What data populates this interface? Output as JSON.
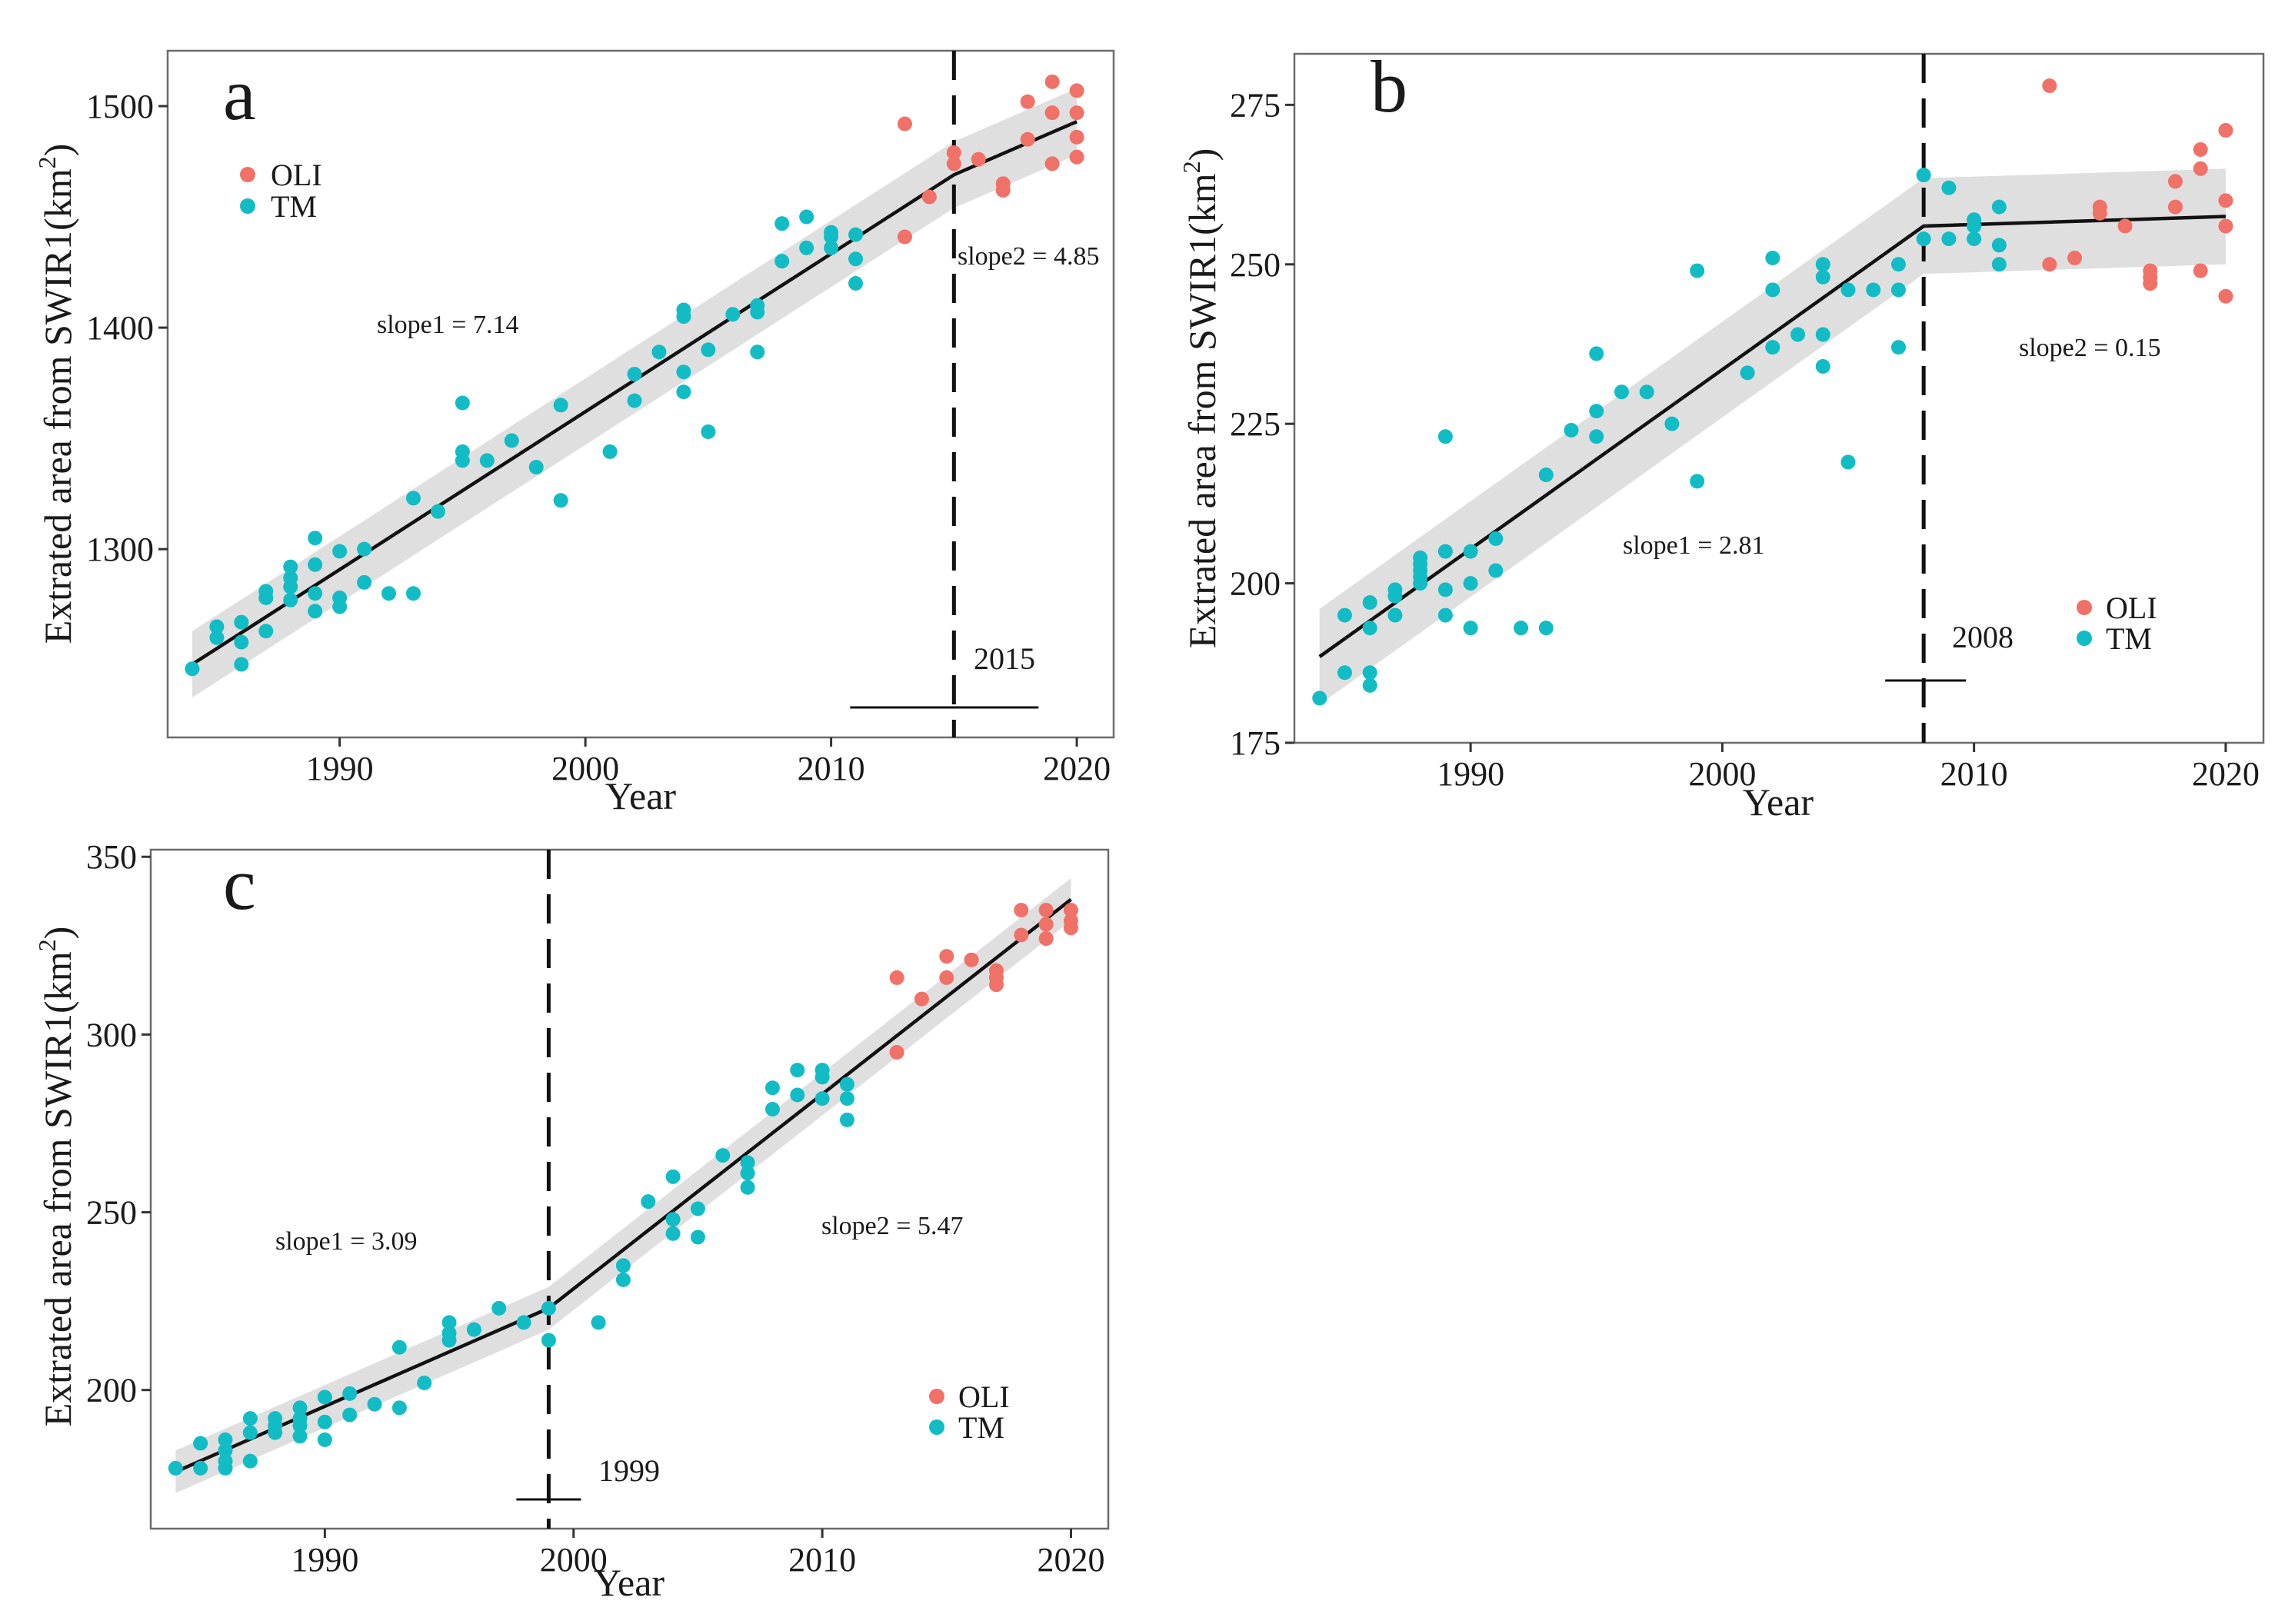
{
  "figure": {
    "legend_labels": [
      "OLI",
      "TM"
    ],
    "colors": {
      "OLI": "#F07167",
      "TM": "#12BCC5"
    }
  },
  "chart_data": [
    {
      "type": "scatter",
      "panel": "a",
      "xlabel": "Year",
      "ylabel_main": "Extrated area from SWIR1(km",
      "ylabel_sup": "2",
      "ylabel_close": ")",
      "xlim": [
        1983,
        2021.5
      ],
      "ylim": [
        1215,
        1525
      ],
      "xticks": [
        1990,
        2000,
        2010,
        2020
      ],
      "yticks": [
        1300,
        1400,
        1500
      ],
      "breakpoint_year": 2015,
      "breakpoint_label": "2015",
      "slope1_label": "slope1 = 7.14",
      "slope2_label": "slope2 = 4.85",
      "legend_position": "top-left",
      "fit": [
        [
          1984,
          1248
        ],
        [
          2015,
          1469
        ],
        [
          2020,
          1493
        ]
      ],
      "band_halfwidth": 15,
      "series": [
        {
          "name": "TM",
          "points": [
            [
              1984,
              1246
            ],
            [
              1985,
              1260
            ],
            [
              1985,
              1265
            ],
            [
              1986,
              1248
            ],
            [
              1986,
              1258
            ],
            [
              1986,
              1267
            ],
            [
              1987,
              1263
            ],
            [
              1987,
              1278
            ],
            [
              1987,
              1281
            ],
            [
              1988,
              1277
            ],
            [
              1988,
              1283
            ],
            [
              1988,
              1287
            ],
            [
              1988,
              1292
            ],
            [
              1989,
              1272
            ],
            [
              1989,
              1280
            ],
            [
              1989,
              1293
            ],
            [
              1989,
              1305
            ],
            [
              1990,
              1274
            ],
            [
              1990,
              1278
            ],
            [
              1990,
              1299
            ],
            [
              1991,
              1285
            ],
            [
              1991,
              1300
            ],
            [
              1992,
              1280
            ],
            [
              1993,
              1280
            ],
            [
              1993,
              1323
            ],
            [
              1994,
              1317
            ],
            [
              1995,
              1340
            ],
            [
              1995,
              1344
            ],
            [
              1995,
              1366
            ],
            [
              1996,
              1340
            ],
            [
              1997,
              1349
            ],
            [
              1998,
              1337
            ],
            [
              1999,
              1322
            ],
            [
              1999,
              1365
            ],
            [
              2001,
              1344
            ],
            [
              2002,
              1367
            ],
            [
              2002,
              1379
            ],
            [
              2003,
              1389
            ],
            [
              2004,
              1371
            ],
            [
              2004,
              1380
            ],
            [
              2004,
              1405
            ],
            [
              2004,
              1408
            ],
            [
              2005,
              1353
            ],
            [
              2005,
              1390
            ],
            [
              2006,
              1406
            ],
            [
              2007,
              1389
            ],
            [
              2007,
              1407
            ],
            [
              2007,
              1410
            ],
            [
              2008,
              1430
            ],
            [
              2008,
              1447
            ],
            [
              2009,
              1436
            ],
            [
              2009,
              1450
            ],
            [
              2010,
              1436
            ],
            [
              2010,
              1441
            ],
            [
              2010,
              1443
            ],
            [
              2011,
              1420
            ],
            [
              2011,
              1431
            ],
            [
              2011,
              1442
            ]
          ]
        },
        {
          "name": "OLI",
          "points": [
            [
              2013,
              1441
            ],
            [
              2013,
              1492
            ],
            [
              2014,
              1459
            ],
            [
              2015,
              1474
            ],
            [
              2015,
              1479
            ],
            [
              2016,
              1476
            ],
            [
              2017,
              1462
            ],
            [
              2017,
              1465
            ],
            [
              2018,
              1485
            ],
            [
              2018,
              1502
            ],
            [
              2019,
              1474
            ],
            [
              2019,
              1497
            ],
            [
              2019,
              1511
            ],
            [
              2020,
              1477
            ],
            [
              2020,
              1486
            ],
            [
              2020,
              1497
            ],
            [
              2020,
              1507
            ]
          ]
        }
      ]
    },
    {
      "type": "scatter",
      "panel": "b",
      "xlabel": "Year",
      "ylabel_main": "Extrated area from SWIR1(km",
      "ylabel_sup": "2",
      "ylabel_close": ")",
      "xlim": [
        1983,
        2021.5
      ],
      "ylim": [
        175,
        283
      ],
      "xticks": [
        1990,
        2000,
        2010,
        2020
      ],
      "yticks": [
        175,
        200,
        225,
        250,
        275
      ],
      "breakpoint_year": 2008,
      "breakpoint_label": "2008",
      "slope1_label": "slope1 = 2.81",
      "slope2_label": "slope2 = 0.15",
      "legend_position": "bottom-right",
      "fit": [
        [
          1984,
          188.5
        ],
        [
          2008,
          256
        ],
        [
          2020,
          257.5
        ]
      ],
      "band_halfwidth": 7.5,
      "series": [
        {
          "name": "TM",
          "points": [
            [
              1984,
              182
            ],
            [
              1985,
              186
            ],
            [
              1985,
              195
            ],
            [
              1986,
              184
            ],
            [
              1986,
              186
            ],
            [
              1986,
              193
            ],
            [
              1986,
              197
            ],
            [
              1987,
              195
            ],
            [
              1987,
              198
            ],
            [
              1987,
              199
            ],
            [
              1988,
              200
            ],
            [
              1988,
              201
            ],
            [
              1988,
              202
            ],
            [
              1988,
              203
            ],
            [
              1988,
              204
            ],
            [
              1989,
              195
            ],
            [
              1989,
              199
            ],
            [
              1989,
              205
            ],
            [
              1989,
              223
            ],
            [
              1990,
              193
            ],
            [
              1990,
              200
            ],
            [
              1990,
              205
            ],
            [
              1991,
              202
            ],
            [
              1991,
              207
            ],
            [
              1992,
              193
            ],
            [
              1993,
              193
            ],
            [
              1993,
              217
            ],
            [
              1994,
              224
            ],
            [
              1995,
              223
            ],
            [
              1995,
              227
            ],
            [
              1995,
              236
            ],
            [
              1996,
              230
            ],
            [
              1997,
              230
            ],
            [
              1998,
              225
            ],
            [
              1999,
              216
            ],
            [
              1999,
              249
            ],
            [
              2001,
              233
            ],
            [
              2002,
              237
            ],
            [
              2002,
              246
            ],
            [
              2002,
              251
            ],
            [
              2003,
              239
            ],
            [
              2004,
              234
            ],
            [
              2004,
              239
            ],
            [
              2004,
              248
            ],
            [
              2004,
              250
            ],
            [
              2005,
              219
            ],
            [
              2005,
              246
            ],
            [
              2006,
              246
            ],
            [
              2007,
              237
            ],
            [
              2007,
              246
            ],
            [
              2007,
              250
            ],
            [
              2008,
              254
            ],
            [
              2008,
              264
            ],
            [
              2009,
              254
            ],
            [
              2009,
              262
            ],
            [
              2010,
              254
            ],
            [
              2010,
              256
            ],
            [
              2010,
              257
            ],
            [
              2011,
              250
            ],
            [
              2011,
              253
            ],
            [
              2011,
              259
            ]
          ]
        },
        {
          "name": "OLI",
          "points": [
            [
              2013,
              250
            ],
            [
              2013,
              278
            ],
            [
              2014,
              251
            ],
            [
              2015,
              258
            ],
            [
              2015,
              259
            ],
            [
              2016,
              256
            ],
            [
              2017,
              247
            ],
            [
              2017,
              248
            ],
            [
              2017,
              249
            ],
            [
              2018,
              259
            ],
            [
              2018,
              263
            ],
            [
              2019,
              249
            ],
            [
              2019,
              265
            ],
            [
              2019,
              268
            ],
            [
              2020,
              245
            ],
            [
              2020,
              256
            ],
            [
              2020,
              260
            ],
            [
              2020,
              271
            ]
          ]
        }
      ]
    },
    {
      "type": "scatter",
      "panel": "c",
      "xlabel": "Year",
      "ylabel_main": "Extrated area from SWIR1(km",
      "ylabel_sup": "2",
      "ylabel_close": ")",
      "xlim": [
        1983,
        2021.5
      ],
      "ylim": [
        161,
        352
      ],
      "xticks": [
        1990,
        2000,
        2010,
        2020
      ],
      "yticks": [
        200,
        250,
        300,
        350
      ],
      "breakpoint_year": 1999,
      "breakpoint_label": "1999",
      "slope1_label": "slope1 = 3.09",
      "slope2_label": "slope2 = 5.47",
      "legend_position": "bottom-right",
      "fit": [
        [
          1984,
          177
        ],
        [
          1999,
          223
        ],
        [
          2020,
          338
        ]
      ],
      "band_halfwidth": 6,
      "series": [
        {
          "name": "TM",
          "points": [
            [
              1984,
              178
            ],
            [
              1985,
              178
            ],
            [
              1985,
              185
            ],
            [
              1986,
              178
            ],
            [
              1986,
              180
            ],
            [
              1986,
              183
            ],
            [
              1986,
              186
            ],
            [
              1987,
              180
            ],
            [
              1987,
              188
            ],
            [
              1987,
              192
            ],
            [
              1988,
              188
            ],
            [
              1988,
              190
            ],
            [
              1988,
              192
            ],
            [
              1989,
              187
            ],
            [
              1989,
              190
            ],
            [
              1989,
              192
            ],
            [
              1989,
              195
            ],
            [
              1990,
              186
            ],
            [
              1990,
              191
            ],
            [
              1990,
              198
            ],
            [
              1991,
              193
            ],
            [
              1991,
              199
            ],
            [
              1992,
              196
            ],
            [
              1993,
              195
            ],
            [
              1993,
              212
            ],
            [
              1994,
              202
            ],
            [
              1995,
              214
            ],
            [
              1995,
              216
            ],
            [
              1995,
              219
            ],
            [
              1996,
              217
            ],
            [
              1997,
              223
            ],
            [
              1998,
              219
            ],
            [
              1999,
              214
            ],
            [
              1999,
              223
            ],
            [
              2001,
              219
            ],
            [
              2002,
              231
            ],
            [
              2002,
              235
            ],
            [
              2003,
              253
            ],
            [
              2004,
              244
            ],
            [
              2004,
              248
            ],
            [
              2004,
              260
            ],
            [
              2005,
              243
            ],
            [
              2005,
              251
            ],
            [
              2006,
              266
            ],
            [
              2007,
              257
            ],
            [
              2007,
              261
            ],
            [
              2007,
              264
            ],
            [
              2008,
              279
            ],
            [
              2008,
              285
            ],
            [
              2009,
              283
            ],
            [
              2009,
              290
            ],
            [
              2010,
              282
            ],
            [
              2010,
              288
            ],
            [
              2010,
              290
            ],
            [
              2011,
              276
            ],
            [
              2011,
              282
            ],
            [
              2011,
              286
            ]
          ]
        },
        {
          "name": "OLI",
          "points": [
            [
              2013,
              295
            ],
            [
              2013,
              316
            ],
            [
              2014,
              310
            ],
            [
              2015,
              316
            ],
            [
              2015,
              322
            ],
            [
              2016,
              321
            ],
            [
              2017,
              314
            ],
            [
              2017,
              316
            ],
            [
              2017,
              318
            ],
            [
              2018,
              328
            ],
            [
              2018,
              335
            ],
            [
              2019,
              327
            ],
            [
              2019,
              331
            ],
            [
              2019,
              335
            ],
            [
              2020,
              330
            ],
            [
              2020,
              332
            ],
            [
              2020,
              335
            ]
          ]
        }
      ]
    }
  ]
}
